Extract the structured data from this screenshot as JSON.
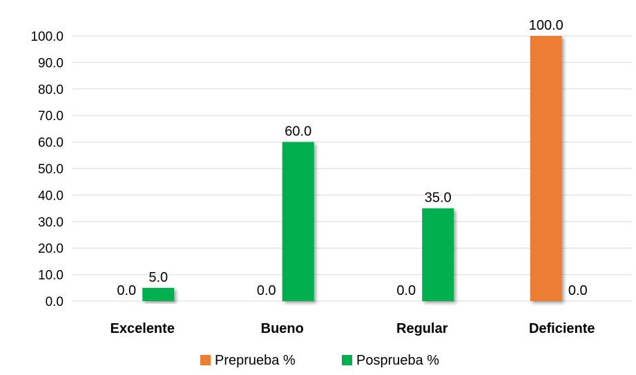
{
  "chart_data": {
    "type": "bar",
    "categories": [
      "Excelente",
      "Bueno",
      "Regular",
      "Deficiente"
    ],
    "series": [
      {
        "name": "Preprueba %",
        "values": [
          0.0,
          0.0,
          0.0,
          100.0
        ],
        "color": "#ED7D31"
      },
      {
        "name": "Posprueba %",
        "values": [
          5.0,
          60.0,
          35.0,
          0.0
        ],
        "color": "#00B050"
      }
    ],
    "y_ticks": [
      "0.0",
      "10.0",
      "20.0",
      "30.0",
      "40.0",
      "50.0",
      "60.0",
      "70.0",
      "80.0",
      "90.0",
      "100.0"
    ],
    "ylim": [
      0,
      100
    ],
    "grid": true,
    "legend_position": "bottom",
    "data_labels": true
  }
}
